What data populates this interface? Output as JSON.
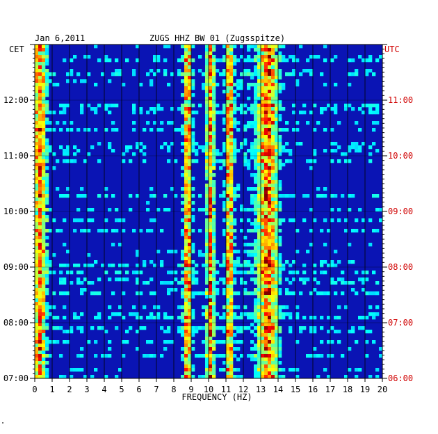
{
  "header": {
    "date": "Jan 6,2011",
    "station": "ZUGS HHZ BW 01 (Zugsspitze)"
  },
  "left_zone": "CET",
  "right_zone": "UTC",
  "footer_mark": "\"",
  "colors": {
    "background": "#ffffff",
    "utc_text": "#d00000",
    "grid": "#000000",
    "spectrogram_low": "#0a14b4",
    "spectrogram_high": "#ff1e00"
  },
  "chart_data": {
    "type": "heatmap",
    "title": "ZUGS HHZ BW 01 (Zugsspitze)",
    "xlabel": "FREQUENCY (HZ)",
    "ylabel": "",
    "x_range": [
      0,
      20
    ],
    "x_ticks": [
      "0",
      "1",
      "2",
      "3",
      "4",
      "5",
      "6",
      "7",
      "8",
      "9",
      "10",
      "11",
      "12",
      "13",
      "14",
      "15",
      "16",
      "17",
      "18",
      "19",
      "20"
    ],
    "y_range_cet": [
      "07:00",
      "13:00"
    ],
    "left_ticks": [
      "12:00",
      "11:00",
      "10:00",
      "09:00",
      "08:00",
      "07:00"
    ],
    "right_ticks": [
      "11:00",
      "10:00",
      "09:00",
      "08:00",
      "07:00",
      "06:00"
    ],
    "grid": true,
    "energy_bands_hz": [
      0.3,
      8.8,
      10.1,
      11.2,
      13.4
    ],
    "colorscale": "jet"
  }
}
